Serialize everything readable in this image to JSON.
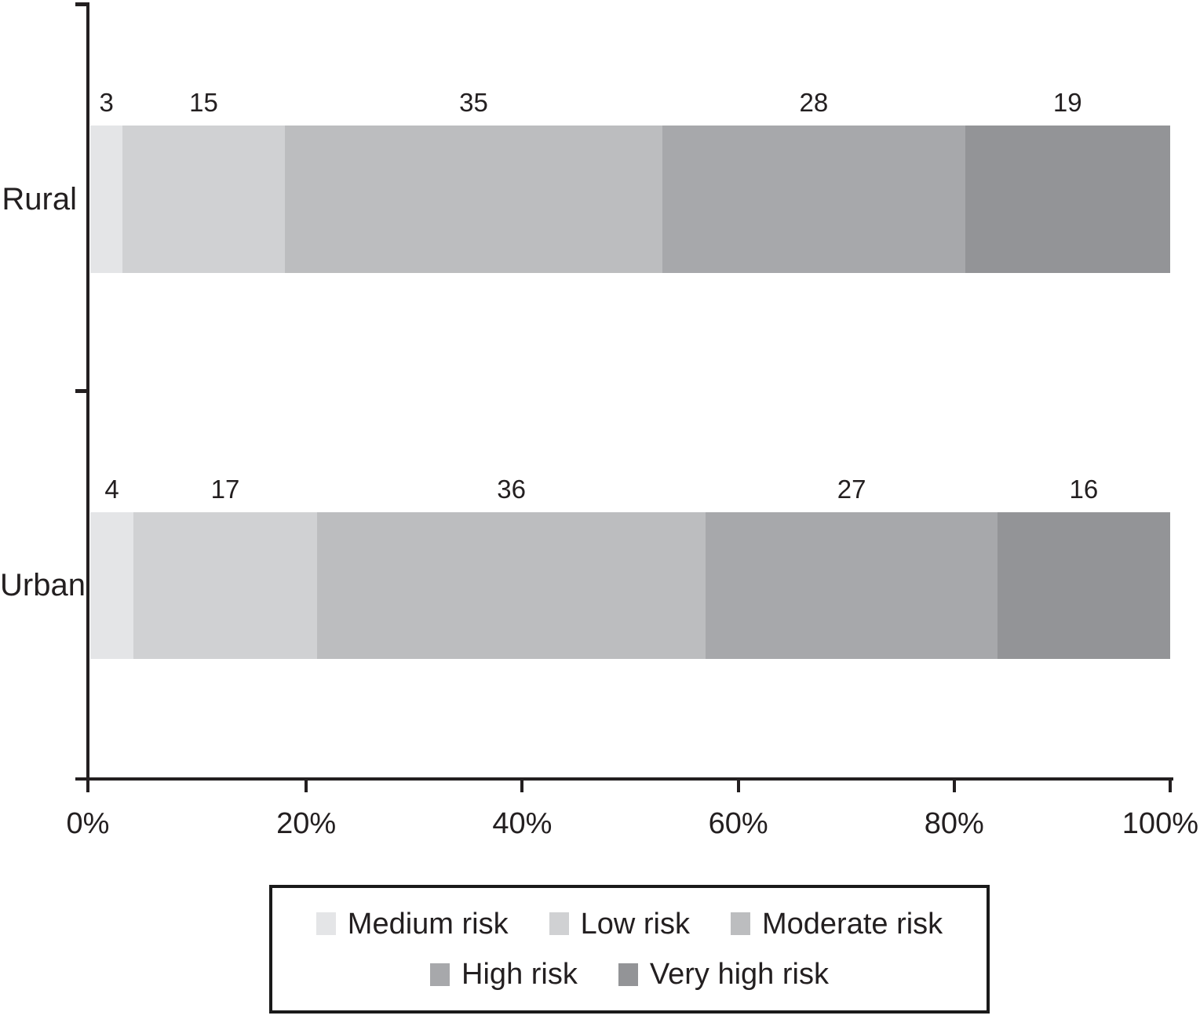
{
  "chart_data": {
    "type": "bar",
    "orientation": "horizontal",
    "stacked": true,
    "unit": "percent",
    "categories": [
      "Rural",
      "Urban"
    ],
    "series": [
      {
        "name": "Medium risk",
        "color": "#e4e5e7",
        "values": [
          3,
          4
        ]
      },
      {
        "name": "Low risk",
        "color": "#d0d1d3",
        "values": [
          15,
          17
        ]
      },
      {
        "name": "Moderate risk",
        "color": "#bcbdbf",
        "values": [
          35,
          36
        ]
      },
      {
        "name": "High risk",
        "color": "#a7a8ab",
        "values": [
          28,
          27
        ]
      },
      {
        "name": "Very high risk",
        "color": "#939497",
        "values": [
          19,
          16
        ]
      }
    ],
    "data_labels": {
      "position": "above-segments",
      "rural": [
        "3",
        "15",
        "35",
        "28",
        "19"
      ],
      "urban": [
        "4",
        "17",
        "36",
        "27",
        "16"
      ]
    },
    "x_axis": {
      "range": [
        0,
        100
      ],
      "tick_values": [
        0,
        20,
        40,
        60,
        80,
        100
      ],
      "tick_labels": [
        "0%",
        "20%",
        "40%",
        "60%",
        "80%",
        "100%"
      ]
    },
    "y_axis": {
      "tick_labels": [
        "Rural",
        "Urban"
      ]
    },
    "legend": {
      "position": "bottom",
      "bordered": true,
      "rows": [
        [
          "Medium risk",
          "Low risk",
          "Moderate risk"
        ],
        [
          "High risk",
          "Very high risk"
        ]
      ]
    },
    "grid": false,
    "title": "",
    "xlabel": "",
    "ylabel": ""
  },
  "colors": {
    "text": "#231f20",
    "axis": "#231f20",
    "background": "#ffffff"
  }
}
